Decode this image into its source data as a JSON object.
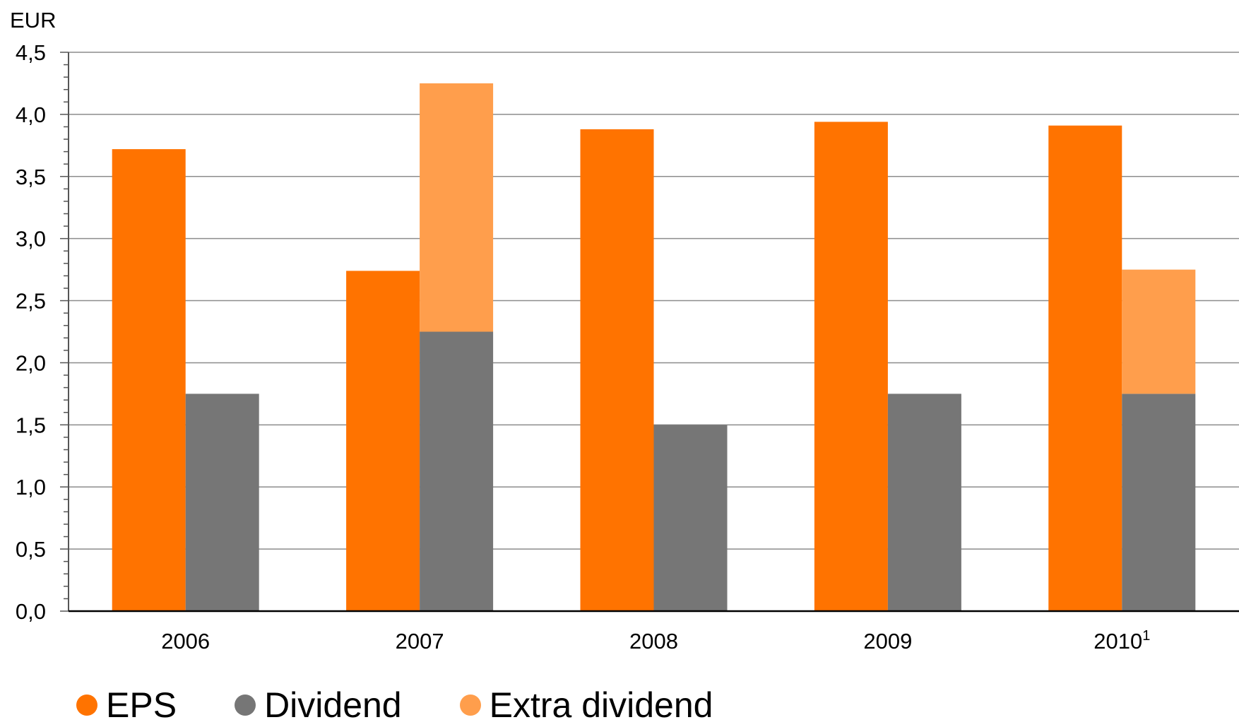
{
  "chart_data": {
    "type": "bar",
    "ylabel": "EUR",
    "ylim": [
      0,
      4.5
    ],
    "yticks": [
      "0,0",
      "0,5",
      "1,0",
      "1,5",
      "2,0",
      "2,5",
      "3,0",
      "3,5",
      "4,0",
      "4,5"
    ],
    "categories": [
      "2006",
      "2007",
      "2008",
      "2009",
      "2010"
    ],
    "category_superscripts": [
      "",
      "",
      "",
      "",
      "1"
    ],
    "grid": true,
    "legend_position": "bottom",
    "series": [
      {
        "name": "EPS",
        "values": [
          3.72,
          2.74,
          3.88,
          3.94,
          3.91
        ],
        "color": "#FF7300",
        "stack": "eps"
      },
      {
        "name": "Dividend",
        "values": [
          1.75,
          2.25,
          1.5,
          1.75,
          1.75
        ],
        "color": "#767676",
        "stack": "div"
      },
      {
        "name": "Extra dividend",
        "values": [
          0,
          2.0,
          0,
          0,
          1.0
        ],
        "color": "#FF9E4C",
        "stack": "div"
      }
    ]
  }
}
